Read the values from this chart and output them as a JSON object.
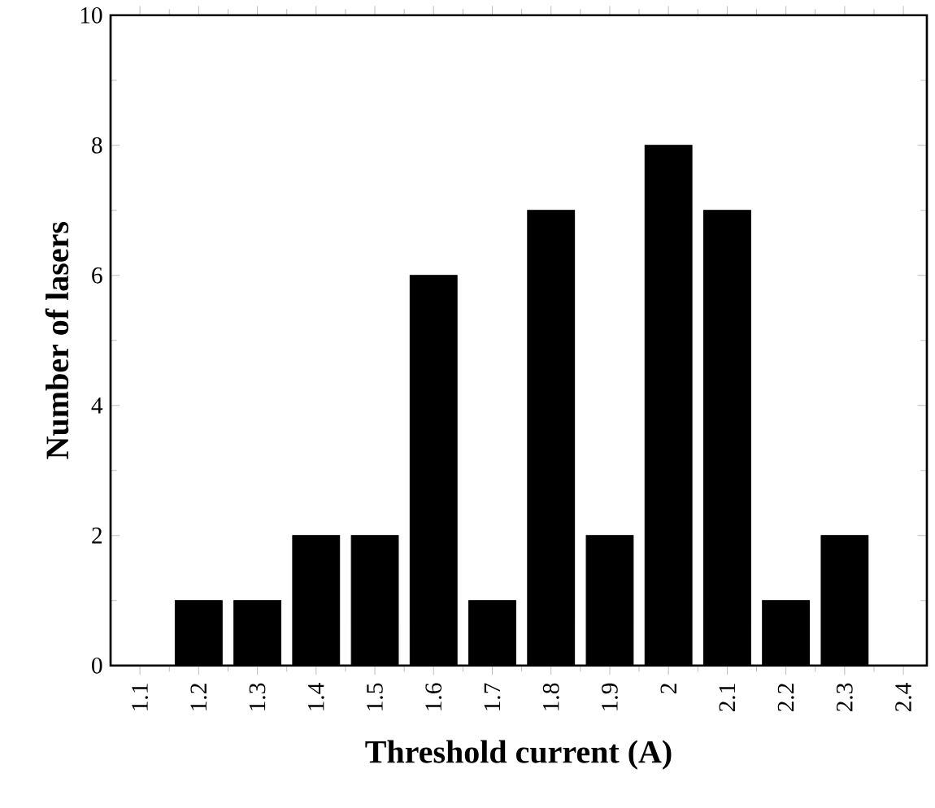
{
  "chart_data": {
    "type": "bar",
    "xlabel": "Threshold current (A)",
    "ylabel": "Number of lasers",
    "x": [
      1.2,
      1.3,
      1.4,
      1.5,
      1.6,
      1.7,
      1.8,
      1.9,
      2,
      2.1,
      2.2,
      2.3
    ],
    "values": [
      1,
      1,
      2,
      2,
      6,
      1,
      7,
      2,
      8,
      7,
      1,
      2
    ],
    "color": "#000000",
    "xlim": [
      1.05,
      2.44
    ],
    "ylim": [
      0,
      10
    ],
    "xticks": [
      1.1,
      1.2,
      1.3,
      1.4,
      1.5,
      1.6,
      1.7,
      1.8,
      1.9,
      2,
      2.1,
      2.2,
      2.3,
      2.4
    ],
    "yticks": [
      0,
      2,
      4,
      6,
      8,
      10
    ]
  }
}
